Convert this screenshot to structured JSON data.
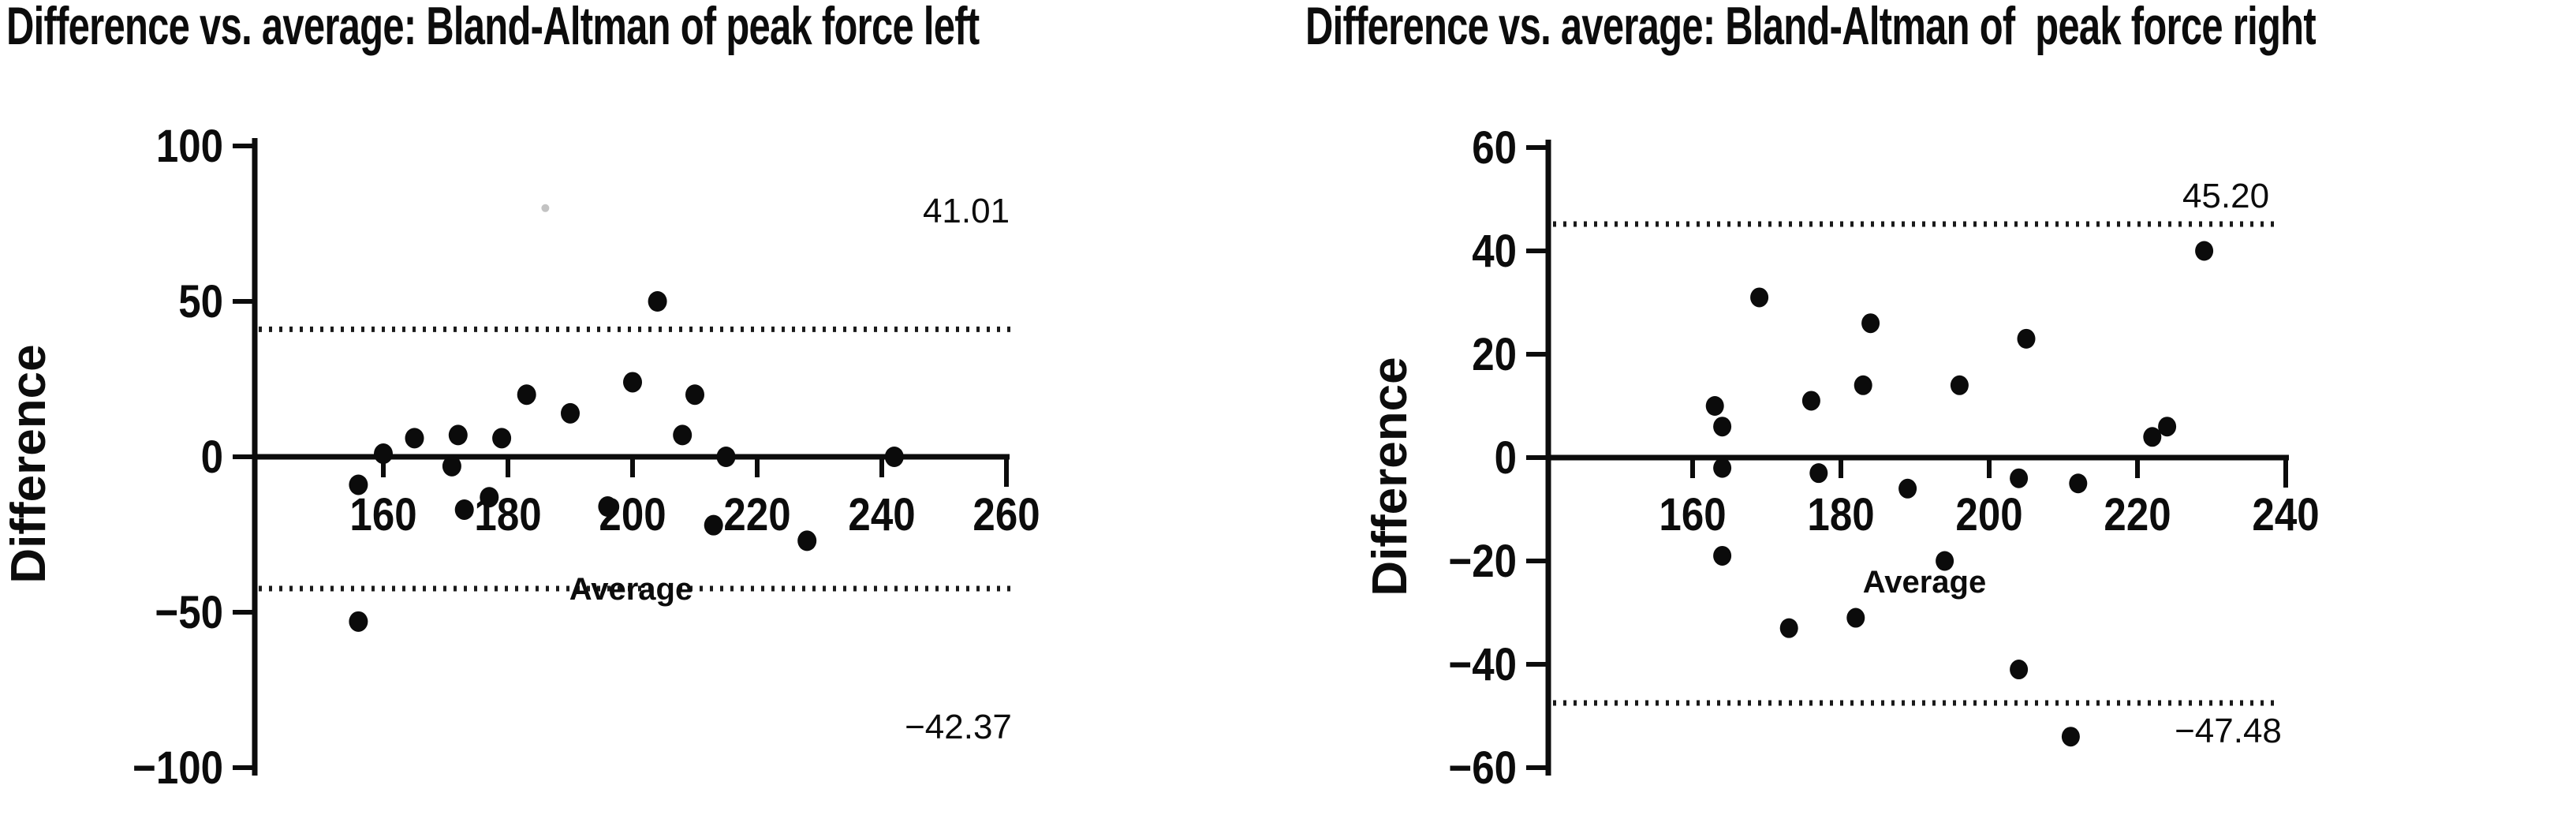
{
  "page": {
    "background": "#ffffff",
    "ink_color": "#0c0c0c",
    "figure_kind": "Bland-Altman scatter plots, two panels"
  },
  "chart_data": [
    {
      "type": "scatter",
      "title": "Difference vs. average: Bland-Altman of peak force left",
      "xlabel": "Average",
      "ylabel": "Difference",
      "x_ticks": [
        160,
        180,
        200,
        220,
        240,
        260
      ],
      "y_ticks": [
        100,
        50,
        0,
        -50,
        -100
      ],
      "xlim": [
        139,
        262
      ],
      "ylim": [
        -100,
        100
      ],
      "zero_line": 0,
      "grid": false,
      "marker_color": "#0b0b0b",
      "upper_loa": {
        "value": 41.01,
        "label": "41.01",
        "style": "dotted"
      },
      "lower_loa": {
        "value": -42.37,
        "label": "−42.37",
        "style": "dotted"
      },
      "points": [
        [
          156,
          -53
        ],
        [
          156,
          -9
        ],
        [
          160,
          1
        ],
        [
          165,
          6
        ],
        [
          171,
          -3
        ],
        [
          172,
          7
        ],
        [
          173,
          -17
        ],
        [
          177,
          -13
        ],
        [
          179,
          6
        ],
        [
          183,
          20
        ],
        [
          190,
          14
        ],
        [
          196,
          -16
        ],
        [
          200,
          24
        ],
        [
          204,
          50
        ],
        [
          208,
          7
        ],
        [
          210,
          20
        ],
        [
          213,
          -22
        ],
        [
          215,
          0
        ],
        [
          228,
          -27
        ],
        [
          242,
          0
        ]
      ],
      "artifact_speck": {
        "x": 186,
        "y": 80
      }
    },
    {
      "type": "scatter",
      "title": "Difference vs. average: Bland-Altman of  peak force right",
      "xlabel": "Average",
      "ylabel": "Difference",
      "x_ticks": [
        160,
        180,
        200,
        220,
        240
      ],
      "y_ticks": [
        60,
        40,
        20,
        0,
        -20,
        -40,
        -60
      ],
      "xlim": [
        140,
        241
      ],
      "ylim": [
        -60,
        60
      ],
      "zero_line": 0,
      "grid": false,
      "marker_color": "#0b0b0b",
      "upper_loa": {
        "value": 45.2,
        "label": "45.20",
        "style": "dotted"
      },
      "lower_loa": {
        "value": -47.48,
        "label": "−47.48",
        "style": "dotted"
      },
      "points": [
        [
          163,
          10
        ],
        [
          164,
          6
        ],
        [
          164,
          -2
        ],
        [
          164,
          -19
        ],
        [
          169,
          31
        ],
        [
          173,
          -33
        ],
        [
          176,
          11
        ],
        [
          177,
          -3
        ],
        [
          182,
          -31
        ],
        [
          183,
          14
        ],
        [
          184,
          26
        ],
        [
          189,
          -6
        ],
        [
          194,
          -20
        ],
        [
          196,
          14
        ],
        [
          204,
          -4
        ],
        [
          204,
          -41
        ],
        [
          205,
          23
        ],
        [
          212,
          -5
        ],
        [
          211,
          -54
        ],
        [
          222,
          4
        ],
        [
          224,
          6
        ],
        [
          229,
          40
        ]
      ]
    }
  ]
}
